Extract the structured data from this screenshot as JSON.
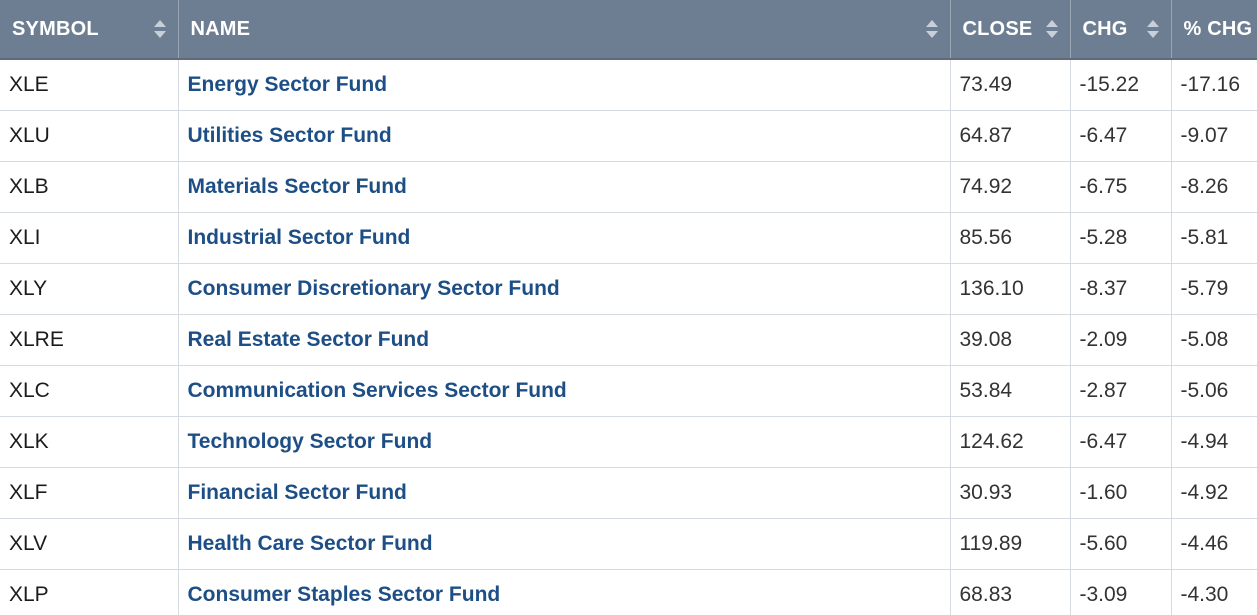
{
  "table": {
    "headers": {
      "symbol": "SYMBOL",
      "name": "NAME",
      "close": "CLOSE",
      "chg": "CHG",
      "pct_chg": "% CHG"
    },
    "rows": [
      {
        "symbol": "XLE",
        "name": "Energy Sector Fund",
        "close": "73.49",
        "chg": "-15.22",
        "pct_chg": "-17.16"
      },
      {
        "symbol": "XLU",
        "name": "Utilities Sector Fund",
        "close": "64.87",
        "chg": "-6.47",
        "pct_chg": "-9.07"
      },
      {
        "symbol": "XLB",
        "name": "Materials Sector Fund",
        "close": "74.92",
        "chg": "-6.75",
        "pct_chg": "-8.26"
      },
      {
        "symbol": "XLI",
        "name": "Industrial Sector Fund",
        "close": "85.56",
        "chg": "-5.28",
        "pct_chg": "-5.81"
      },
      {
        "symbol": "XLY",
        "name": "Consumer Discretionary Sector Fund",
        "close": "136.10",
        "chg": "-8.37",
        "pct_chg": "-5.79"
      },
      {
        "symbol": "XLRE",
        "name": "Real Estate Sector Fund",
        "close": "39.08",
        "chg": "-2.09",
        "pct_chg": "-5.08"
      },
      {
        "symbol": "XLC",
        "name": "Communication Services Sector Fund",
        "close": "53.84",
        "chg": "-2.87",
        "pct_chg": "-5.06"
      },
      {
        "symbol": "XLK",
        "name": "Technology Sector Fund",
        "close": "124.62",
        "chg": "-6.47",
        "pct_chg": "-4.94"
      },
      {
        "symbol": "XLF",
        "name": "Financial Sector Fund",
        "close": "30.93",
        "chg": "-1.60",
        "pct_chg": "-4.92"
      },
      {
        "symbol": "XLV",
        "name": "Health Care Sector Fund",
        "close": "119.89",
        "chg": "-5.60",
        "pct_chg": "-4.46"
      },
      {
        "symbol": "XLP",
        "name": "Consumer Staples Sector Fund",
        "close": "68.83",
        "chg": "-3.09",
        "pct_chg": "-4.30"
      }
    ]
  },
  "colors": {
    "header_bg": "#6e7e92",
    "header_text": "#ffffff",
    "link": "#1d4f86",
    "grid": "#d6dbe2"
  },
  "icons": {
    "sort": "sort-arrows-icon"
  }
}
